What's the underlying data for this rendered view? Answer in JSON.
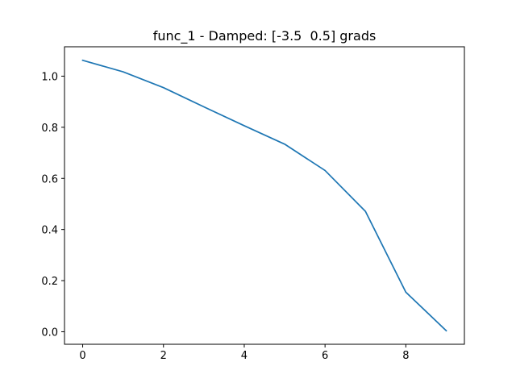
{
  "chart_data": {
    "type": "line",
    "title": "func_1 - Damped: [-3.5  0.5] grads",
    "xlabel": "",
    "ylabel": "",
    "x": [
      0,
      1,
      2,
      3,
      4,
      5,
      6,
      7,
      8,
      9
    ],
    "series": [
      {
        "values": [
          1.062,
          1.017,
          0.955,
          0.88,
          0.806,
          0.734,
          0.631,
          0.471,
          0.155,
          0.004
        ],
        "color": "#1f77b4"
      }
    ],
    "xlim": [
      -0.45,
      9.45
    ],
    "ylim": [
      -0.049,
      1.115
    ],
    "xticks": [
      0,
      2,
      4,
      6,
      8
    ],
    "yticks": [
      0.0,
      0.2,
      0.4,
      0.6,
      0.8,
      1.0
    ],
    "xtick_labels": [
      "0",
      "2",
      "4",
      "6",
      "8"
    ],
    "ytick_labels": [
      "0.0",
      "0.2",
      "0.4",
      "0.6",
      "0.8",
      "1.0"
    ],
    "grid": false,
    "legend": "none"
  }
}
